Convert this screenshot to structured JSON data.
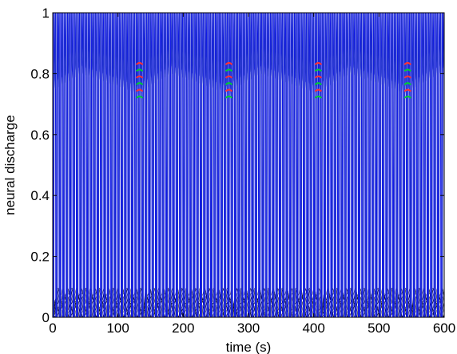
{
  "chart_data": {
    "type": "line",
    "title": "",
    "xlabel": "time (s)",
    "ylabel": "neural discharge",
    "xlim": [
      0,
      600
    ],
    "ylim": [
      0,
      1
    ],
    "x_ticks": [
      0,
      100,
      200,
      300,
      400,
      500,
      600
    ],
    "y_ticks": [
      0,
      0.2,
      0.4,
      0.6,
      0.8,
      1
    ],
    "x_tick_labels": [
      "0",
      "100",
      "200",
      "300",
      "400",
      "500",
      "600"
    ],
    "y_tick_labels": [
      "0",
      "0.2",
      "0.4",
      "0.6",
      "0.8",
      "1"
    ],
    "grid": false,
    "legend": "none",
    "cycle_period": 137,
    "cycle_starts": [
      0,
      137,
      274,
      411,
      548
    ],
    "pulses_per_cycle": 26,
    "pulse_peak": 1.0,
    "pulse_trough": 0.0,
    "pulse_envelope": [
      {
        "phase": 0.0,
        "min": 0.6
      },
      {
        "phase": 0.3,
        "min": 0.7
      },
      {
        "phase": 0.7,
        "min": 0.62
      },
      {
        "phase": 1.0,
        "min": 0.55
      }
    ],
    "low_band": {
      "min": 0.0,
      "max": 0.11,
      "oscillation_period": 7
    },
    "colored_markers": {
      "y_range": [
        0.72,
        0.83
      ],
      "colors": [
        "#00cc33",
        "#ff3333"
      ]
    },
    "series": [
      {
        "color": "#0000ff"
      },
      {
        "color": "#000000"
      },
      {
        "color": "#ff0000"
      },
      {
        "color": "#00aa00"
      },
      {
        "color": "#ffaa00"
      }
    ]
  }
}
